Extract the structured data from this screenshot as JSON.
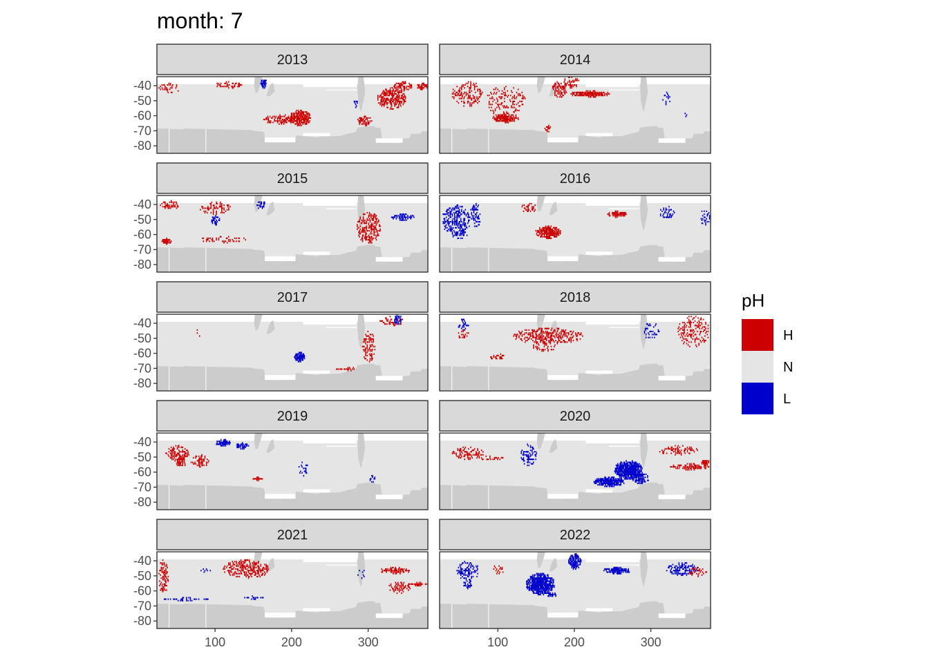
{
  "chart_data": {
    "type": "heatmap",
    "title": "month: 7",
    "facet_by": "year",
    "xlim": [
      24,
      378
    ],
    "ylim": [
      -85,
      -34
    ],
    "xticks": [
      100,
      200,
      300
    ],
    "yticks": [
      -40,
      -50,
      -60,
      -70,
      -80
    ],
    "xlabel": "",
    "ylabel": "",
    "ocean_top_lat": -39,
    "land_color": "#cccccc",
    "legend": {
      "title": "pH",
      "position": "right",
      "entries": [
        {
          "key": "H",
          "label": "H",
          "color": "#cc0000"
        },
        {
          "key": "N",
          "label": "N",
          "color": "#e5e5e5"
        },
        {
          "key": "L",
          "label": "L",
          "color": "#0000cc"
        }
      ]
    },
    "panels": [
      {
        "year": "2013",
        "clusters": [
          {
            "class": "H",
            "lon": 40,
            "lat": -41,
            "dlon": 14,
            "dlat": 3,
            "density": 0.25
          },
          {
            "class": "H",
            "lon": 120,
            "lat": -39,
            "dlon": 20,
            "dlat": 2,
            "density": 0.35
          },
          {
            "class": "L",
            "lon": 163,
            "lat": -38,
            "dlon": 4,
            "dlat": 3,
            "density": 0.8
          },
          {
            "class": "H",
            "lon": 185,
            "lat": -62,
            "dlon": 22,
            "dlat": 3,
            "density": 0.55
          },
          {
            "class": "H",
            "lon": 210,
            "lat": -61,
            "dlon": 14,
            "dlat": 5,
            "density": 0.75
          },
          {
            "class": "H",
            "lon": 295,
            "lat": -63,
            "dlon": 10,
            "dlat": 3,
            "density": 0.45
          },
          {
            "class": "H",
            "lon": 330,
            "lat": -48,
            "dlon": 18,
            "dlat": 7,
            "density": 0.6
          },
          {
            "class": "H",
            "lon": 345,
            "lat": -40,
            "dlon": 12,
            "dlat": 3,
            "density": 0.6
          },
          {
            "class": "H",
            "lon": 370,
            "lat": -40,
            "dlon": 7,
            "dlat": 2,
            "density": 0.7
          },
          {
            "class": "L",
            "lon": 283,
            "lat": -52,
            "dlon": 3,
            "dlat": 3,
            "density": 0.4
          }
        ]
      },
      {
        "year": "2014",
        "clusters": [
          {
            "class": "H",
            "lon": 60,
            "lat": -45,
            "dlon": 20,
            "dlat": 8,
            "density": 0.25
          },
          {
            "class": "H",
            "lon": 110,
            "lat": -50,
            "dlon": 25,
            "dlat": 10,
            "density": 0.2
          },
          {
            "class": "H",
            "lon": 110,
            "lat": -61,
            "dlon": 17,
            "dlat": 3,
            "density": 0.7
          },
          {
            "class": "H",
            "lon": 180,
            "lat": -42,
            "dlon": 10,
            "dlat": 5,
            "density": 0.4
          },
          {
            "class": "H",
            "lon": 220,
            "lat": -45,
            "dlon": 25,
            "dlat": 2,
            "density": 0.85
          },
          {
            "class": "H",
            "lon": 195,
            "lat": -37,
            "dlon": 10,
            "dlat": 4,
            "density": 0.4
          },
          {
            "class": "H",
            "lon": 165,
            "lat": -68,
            "dlon": 4,
            "dlat": 2,
            "density": 0.5
          },
          {
            "class": "L",
            "lon": 320,
            "lat": -48,
            "dlon": 5,
            "dlat": 4,
            "density": 0.25
          },
          {
            "class": "L",
            "lon": 345,
            "lat": -58,
            "dlon": 3,
            "dlat": 3,
            "density": 0.3
          }
        ]
      },
      {
        "year": "2015",
        "clusters": [
          {
            "class": "H",
            "lon": 40,
            "lat": -40,
            "dlon": 12,
            "dlat": 3,
            "density": 0.45
          },
          {
            "class": "H",
            "lon": 36,
            "lat": -64,
            "dlon": 6,
            "dlat": 2,
            "density": 0.8
          },
          {
            "class": "H",
            "lon": 100,
            "lat": -42,
            "dlon": 20,
            "dlat": 4,
            "density": 0.3
          },
          {
            "class": "L",
            "lon": 100,
            "lat": -50,
            "dlon": 6,
            "dlat": 3,
            "density": 0.5
          },
          {
            "class": "H",
            "lon": 110,
            "lat": -63,
            "dlon": 30,
            "dlat": 2,
            "density": 0.25
          },
          {
            "class": "L",
            "lon": 160,
            "lat": -40,
            "dlon": 6,
            "dlat": 3,
            "density": 0.4
          },
          {
            "class": "H",
            "lon": 300,
            "lat": -55,
            "dlon": 15,
            "dlat": 10,
            "density": 0.4
          },
          {
            "class": "L",
            "lon": 345,
            "lat": -48,
            "dlon": 15,
            "dlat": 2,
            "density": 0.6
          }
        ]
      },
      {
        "year": "2016",
        "clusters": [
          {
            "class": "L",
            "lon": 45,
            "lat": -50,
            "dlon": 18,
            "dlat": 10,
            "density": 0.4
          },
          {
            "class": "L",
            "lon": 70,
            "lat": -47,
            "dlon": 7,
            "dlat": 8,
            "density": 0.35
          },
          {
            "class": "L",
            "lon": 50,
            "lat": -60,
            "dlon": 10,
            "dlat": 3,
            "density": 0.3
          },
          {
            "class": "H",
            "lon": 165,
            "lat": -58,
            "dlon": 16,
            "dlat": 4,
            "density": 0.8
          },
          {
            "class": "H",
            "lon": 140,
            "lat": -42,
            "dlon": 10,
            "dlat": 3,
            "density": 0.3
          },
          {
            "class": "H",
            "lon": 255,
            "lat": -46,
            "dlon": 12,
            "dlat": 2,
            "density": 0.85
          },
          {
            "class": "L",
            "lon": 320,
            "lat": -45,
            "dlon": 10,
            "dlat": 4,
            "density": 0.3
          },
          {
            "class": "L",
            "lon": 370,
            "lat": -48,
            "dlon": 7,
            "dlat": 5,
            "density": 0.3
          }
        ]
      },
      {
        "year": "2017",
        "clusters": [
          {
            "class": "L",
            "lon": 210,
            "lat": -62,
            "dlon": 7,
            "dlat": 3,
            "density": 0.9
          },
          {
            "class": "H",
            "lon": 330,
            "lat": -38,
            "dlon": 15,
            "dlat": 3,
            "density": 0.35
          },
          {
            "class": "L",
            "lon": 338,
            "lat": -37,
            "dlon": 5,
            "dlat": 3,
            "density": 0.7
          },
          {
            "class": "H",
            "lon": 300,
            "lat": -55,
            "dlon": 8,
            "dlat": 10,
            "density": 0.3
          },
          {
            "class": "H",
            "lon": 275,
            "lat": -70,
            "dlon": 20,
            "dlat": 1,
            "density": 0.5
          },
          {
            "class": "H",
            "lon": 80,
            "lat": -45,
            "dlon": 5,
            "dlat": 3,
            "density": 0.1
          }
        ]
      },
      {
        "year": "2018",
        "clusters": [
          {
            "class": "L",
            "lon": 55,
            "lat": -40,
            "dlon": 8,
            "dlat": 4,
            "density": 0.3
          },
          {
            "class": "H",
            "lon": 55,
            "lat": -47,
            "dlon": 8,
            "dlat": 3,
            "density": 0.3
          },
          {
            "class": "H",
            "lon": 165,
            "lat": -48,
            "dlon": 45,
            "dlat": 5,
            "density": 0.45
          },
          {
            "class": "H",
            "lon": 160,
            "lat": -55,
            "dlon": 15,
            "dlat": 4,
            "density": 0.2
          },
          {
            "class": "H",
            "lon": 100,
            "lat": -62,
            "dlon": 10,
            "dlat": 2,
            "density": 0.4
          },
          {
            "class": "L",
            "lon": 300,
            "lat": -45,
            "dlon": 10,
            "dlat": 6,
            "density": 0.2
          },
          {
            "class": "H",
            "lon": 355,
            "lat": -45,
            "dlon": 20,
            "dlat": 10,
            "density": 0.25
          }
        ]
      },
      {
        "year": "2019",
        "clusters": [
          {
            "class": "H",
            "lon": 50,
            "lat": -47,
            "dlon": 15,
            "dlat": 5,
            "density": 0.4
          },
          {
            "class": "H",
            "lon": 55,
            "lat": -53,
            "dlon": 7,
            "dlat": 3,
            "density": 0.6
          },
          {
            "class": "H",
            "lon": 80,
            "lat": -52,
            "dlon": 12,
            "dlat": 4,
            "density": 0.3
          },
          {
            "class": "L",
            "lon": 110,
            "lat": -40,
            "dlon": 10,
            "dlat": 2,
            "density": 0.8
          },
          {
            "class": "L",
            "lon": 135,
            "lat": -42,
            "dlon": 8,
            "dlat": 2,
            "density": 0.7
          },
          {
            "class": "H",
            "lon": 155,
            "lat": -64,
            "dlon": 6,
            "dlat": 1,
            "density": 0.8
          },
          {
            "class": "L",
            "lon": 215,
            "lat": -57,
            "dlon": 6,
            "dlat": 5,
            "density": 0.25
          },
          {
            "class": "L",
            "lon": 290,
            "lat": -70,
            "dlon": 4,
            "dlat": 2,
            "density": 0.4
          },
          {
            "class": "L",
            "lon": 305,
            "lat": -64,
            "dlon": 4,
            "dlat": 2,
            "density": 0.3
          }
        ]
      },
      {
        "year": "2020",
        "clusters": [
          {
            "class": "H",
            "lon": 60,
            "lat": -47,
            "dlon": 20,
            "dlat": 4,
            "density": 0.3
          },
          {
            "class": "H",
            "lon": 90,
            "lat": -50,
            "dlon": 18,
            "dlat": 2,
            "density": 0.25
          },
          {
            "class": "L",
            "lon": 140,
            "lat": -48,
            "dlon": 10,
            "dlat": 7,
            "density": 0.4
          },
          {
            "class": "L",
            "lon": 270,
            "lat": -58,
            "dlon": 18,
            "dlat": 6,
            "density": 0.85
          },
          {
            "class": "L",
            "lon": 245,
            "lat": -66,
            "dlon": 20,
            "dlat": 3,
            "density": 0.85
          },
          {
            "class": "L",
            "lon": 285,
            "lat": -63,
            "dlon": 12,
            "dlat": 4,
            "density": 0.6
          },
          {
            "class": "H",
            "lon": 335,
            "lat": -45,
            "dlon": 25,
            "dlat": 3,
            "density": 0.35
          },
          {
            "class": "H",
            "lon": 350,
            "lat": -56,
            "dlon": 25,
            "dlat": 2,
            "density": 0.6
          },
          {
            "class": "H",
            "lon": 370,
            "lat": -53,
            "dlon": 6,
            "dlat": 2,
            "density": 0.7
          }
        ]
      },
      {
        "year": "2021",
        "clusters": [
          {
            "class": "H",
            "lon": 32,
            "lat": -50,
            "dlon": 6,
            "dlat": 12,
            "density": 0.35
          },
          {
            "class": "L",
            "lon": 60,
            "lat": -65,
            "dlon": 30,
            "dlat": 1,
            "density": 0.3
          },
          {
            "class": "H",
            "lon": 140,
            "lat": -45,
            "dlon": 30,
            "dlat": 6,
            "density": 0.4
          },
          {
            "class": "L",
            "lon": 150,
            "lat": -64,
            "dlon": 12,
            "dlat": 1,
            "density": 0.5
          },
          {
            "class": "L",
            "lon": 85,
            "lat": -46,
            "dlon": 10,
            "dlat": 1,
            "density": 0.4
          },
          {
            "class": "H",
            "lon": 335,
            "lat": -46,
            "dlon": 20,
            "dlat": 2,
            "density": 0.6
          },
          {
            "class": "H",
            "lon": 365,
            "lat": -55,
            "dlon": 15,
            "dlat": 1,
            "density": 0.75
          },
          {
            "class": "H",
            "lon": 340,
            "lat": -57,
            "dlon": 15,
            "dlat": 4,
            "density": 0.3
          },
          {
            "class": "L",
            "lon": 290,
            "lat": -48,
            "dlon": 6,
            "dlat": 3,
            "density": 0.2
          }
        ]
      },
      {
        "year": "2022",
        "clusters": [
          {
            "class": "L",
            "lon": 60,
            "lat": -46,
            "dlon": 15,
            "dlat": 6,
            "density": 0.35
          },
          {
            "class": "L",
            "lon": 60,
            "lat": -55,
            "dlon": 6,
            "dlat": 3,
            "density": 0.4
          },
          {
            "class": "L",
            "lon": 155,
            "lat": -55,
            "dlon": 18,
            "dlat": 7,
            "density": 0.85
          },
          {
            "class": "L",
            "lon": 170,
            "lat": -62,
            "dlon": 6,
            "dlat": 2,
            "density": 0.6
          },
          {
            "class": "L",
            "lon": 200,
            "lat": -40,
            "dlon": 8,
            "dlat": 5,
            "density": 0.75
          },
          {
            "class": "L",
            "lon": 255,
            "lat": -46,
            "dlon": 18,
            "dlat": 2,
            "density": 0.8
          },
          {
            "class": "L",
            "lon": 340,
            "lat": -45,
            "dlon": 20,
            "dlat": 4,
            "density": 0.4
          },
          {
            "class": "H",
            "lon": 100,
            "lat": -45,
            "dlon": 8,
            "dlat": 3,
            "density": 0.2
          },
          {
            "class": "H",
            "lon": 360,
            "lat": -47,
            "dlon": 12,
            "dlat": 3,
            "density": 0.3
          }
        ]
      }
    ]
  }
}
